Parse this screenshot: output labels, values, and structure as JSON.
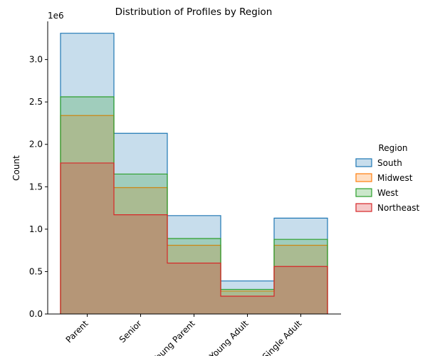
{
  "chart_data": {
    "type": "histogram-step",
    "title": "Distribution of Profiles by Region",
    "xlabel": "",
    "ylabel": "Count",
    "y_multiplier_label": "1e6",
    "ylim": [
      0,
      3450000
    ],
    "yticks": [
      0,
      500000,
      1000000,
      1500000,
      2000000,
      2500000,
      3000000
    ],
    "ytick_labels": [
      "0.0",
      "0.5",
      "1.0",
      "1.5",
      "2.0",
      "2.5",
      "3.0"
    ],
    "categories": [
      "Parent",
      "Senior",
      "Young Parent",
      "Young Adult",
      "Single Adult"
    ],
    "series": [
      {
        "name": "South",
        "color": "#1f77b4",
        "values": [
          3310000,
          2130000,
          1160000,
          390000,
          1130000
        ]
      },
      {
        "name": "Midwest",
        "color": "#ff7f0e",
        "values": [
          2340000,
          1490000,
          810000,
          270000,
          810000
        ]
      },
      {
        "name": "West",
        "color": "#2ca02c",
        "values": [
          2560000,
          1650000,
          890000,
          290000,
          880000
        ]
      },
      {
        "name": "Northeast",
        "color": "#d62728",
        "values": [
          1780000,
          1170000,
          600000,
          210000,
          560000
        ]
      }
    ],
    "legend": {
      "title": "Region",
      "placement": "right"
    },
    "grid": false
  }
}
